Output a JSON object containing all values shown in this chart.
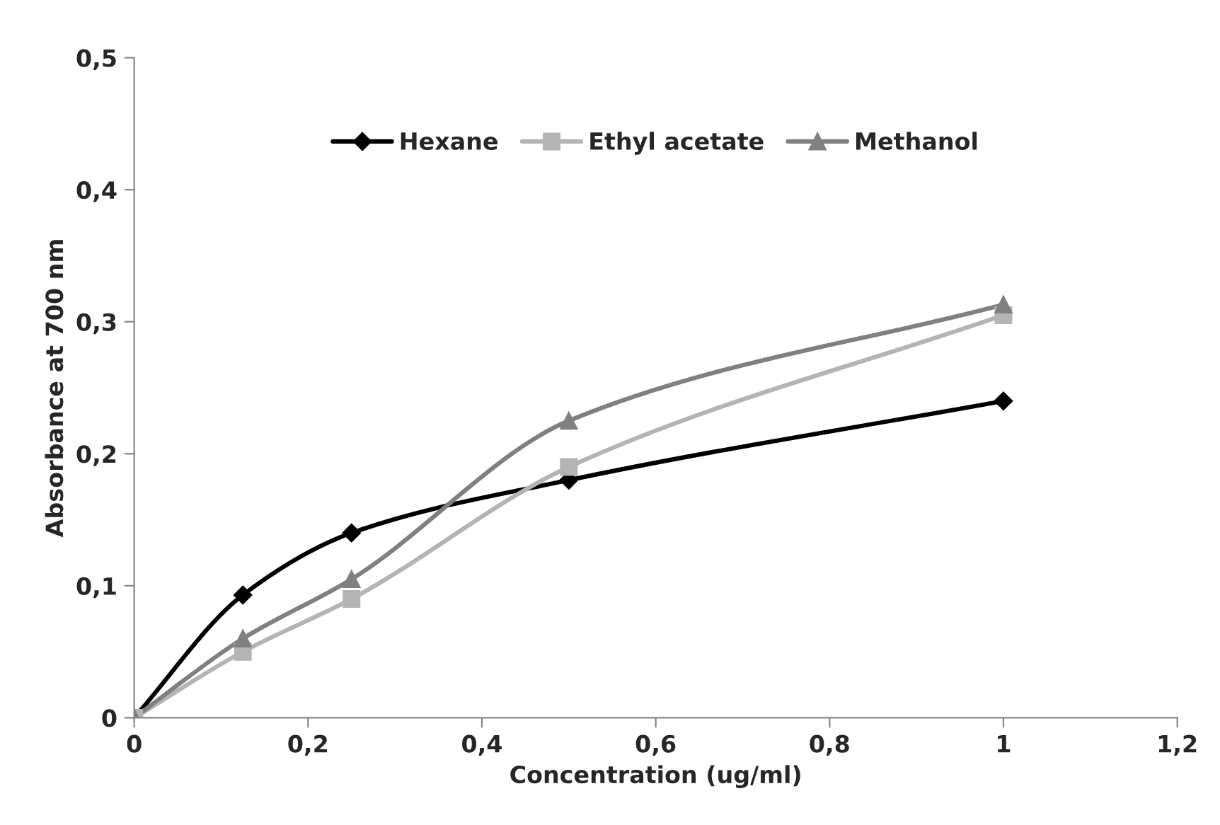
{
  "chart_data": {
    "type": "line",
    "xlabel": "Concentration (ug/ml)",
    "ylabel": "Absorbance at 700 nm",
    "xlim": [
      0,
      1.2
    ],
    "ylim": [
      0,
      0.5
    ],
    "xticks": [
      0,
      {
        "value": 0.2,
        "label": "0,2"
      },
      {
        "value": 0.4,
        "label": "0,4"
      },
      {
        "value": 0.6,
        "label": "0,6"
      },
      {
        "value": 0.8,
        "label": "0,8"
      },
      1,
      {
        "value": 1.2,
        "label": "1,2"
      }
    ],
    "yticks": [
      0,
      {
        "value": 0.1,
        "label": "0,1"
      },
      {
        "value": 0.2,
        "label": "0,2"
      },
      {
        "value": 0.3,
        "label": "0,3"
      },
      {
        "value": 0.4,
        "label": "0,4"
      },
      {
        "value": 0.5,
        "label": "0,5"
      }
    ],
    "x": [
      0,
      0.125,
      0.25,
      0.5,
      1
    ],
    "series": [
      {
        "name": "Hexane",
        "color": "#000000",
        "marker": "diamond",
        "values": [
          0,
          0.093,
          0.14,
          0.18,
          0.24
        ]
      },
      {
        "name": "Ethyl acetate",
        "color": "#b4b4b4",
        "marker": "square",
        "values": [
          0,
          0.05,
          0.09,
          0.19,
          0.305
        ]
      },
      {
        "name": "Methanol",
        "color": "#808080",
        "marker": "triangle",
        "values": [
          0,
          0.06,
          0.105,
          0.225,
          0.313
        ]
      }
    ],
    "legend": "top",
    "grid": false,
    "line_style": "solid"
  }
}
